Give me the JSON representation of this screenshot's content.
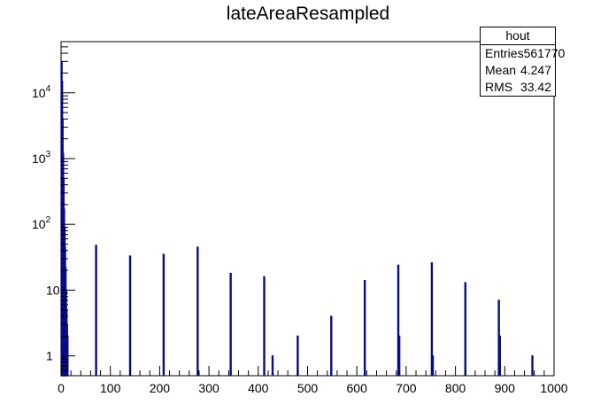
{
  "chart_data": {
    "type": "bar",
    "title": "lateAreaResampled",
    "xlabel": "",
    "ylabel": "",
    "xlim": [
      0,
      1000
    ],
    "ylim": [
      0.5,
      60000
    ],
    "yscale": "log",
    "x_ticks": [
      "0",
      "100",
      "200",
      "300",
      "400",
      "500",
      "600",
      "700",
      "800",
      "900",
      "1000"
    ],
    "y_ticks": [
      {
        "base": "1",
        "exp": "",
        "value": 1
      },
      {
        "base": "10",
        "exp": "",
        "value": 10
      },
      {
        "base": "10",
        "exp": "2",
        "value": 100
      },
      {
        "base": "10",
        "exp": "3",
        "value": 1000
      },
      {
        "base": "10",
        "exp": "4",
        "value": 10000
      }
    ],
    "series": [
      {
        "color": "#0a0a8a",
        "points": [
          {
            "x": 0,
            "y": 30000
          },
          {
            "x": 1,
            "y": 15000
          },
          {
            "x": 2,
            "y": 4000
          },
          {
            "x": 3,
            "y": 1200
          },
          {
            "x": 4,
            "y": 500
          },
          {
            "x": 5,
            "y": 170
          },
          {
            "x": 6,
            "y": 90
          },
          {
            "x": 7,
            "y": 45
          },
          {
            "x": 8,
            "y": 22
          },
          {
            "x": 9,
            "y": 10
          },
          {
            "x": 10,
            "y": 5
          },
          {
            "x": 11,
            "y": 3
          },
          {
            "x": 12,
            "y": 2
          },
          {
            "x": 70,
            "y": 48
          },
          {
            "x": 139,
            "y": 33
          },
          {
            "x": 207,
            "y": 35
          },
          {
            "x": 276,
            "y": 45
          },
          {
            "x": 343,
            "y": 18
          },
          {
            "x": 411,
            "y": 16
          },
          {
            "x": 428,
            "y": 1
          },
          {
            "x": 479,
            "y": 2
          },
          {
            "x": 547,
            "y": 4
          },
          {
            "x": 615,
            "y": 14
          },
          {
            "x": 683,
            "y": 24
          },
          {
            "x": 685,
            "y": 2
          },
          {
            "x": 751,
            "y": 26
          },
          {
            "x": 753,
            "y": 1
          },
          {
            "x": 819,
            "y": 13
          },
          {
            "x": 887,
            "y": 7
          },
          {
            "x": 889,
            "y": 2
          },
          {
            "x": 955,
            "y": 1
          }
        ]
      }
    ],
    "stats": {
      "name": "hout",
      "rows": [
        {
          "label": "Entries",
          "value": "561770"
        },
        {
          "label": "Mean",
          "value": "4.247"
        },
        {
          "label": "RMS",
          "value": "33.42"
        }
      ]
    }
  }
}
